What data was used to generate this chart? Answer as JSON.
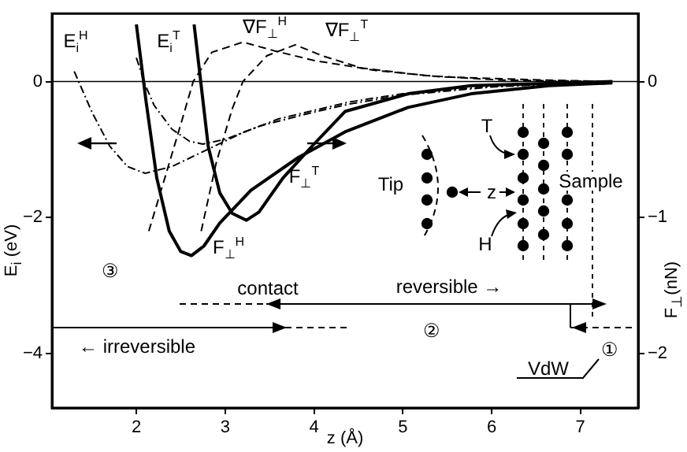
{
  "chart_data": {
    "type": "line",
    "xlabel": "z (Å)",
    "ylabel": "E$_{i}$ (eV)",
    "y2label": "F$_{⊥}$(nN)",
    "xlim": [
      1.05,
      7.65
    ],
    "xticks": [
      2,
      3,
      4,
      5,
      6,
      7
    ],
    "ylim": [
      -4.8,
      1.0
    ],
    "yticks": [
      0,
      -2,
      -4
    ],
    "y2lim": [
      -2.4,
      0.5
    ],
    "y2ticks": [
      0,
      -1,
      -2
    ],
    "grid": false,
    "legend": false,
    "marker": "none",
    "ref_lines": [
      {
        "axis": "y",
        "value": 0,
        "color": "#000000"
      }
    ],
    "series": [
      {
        "color": "#000000",
        "line_style": "dotted",
        "x": [
          1.3,
          1.5,
          1.7,
          1.9,
          2.1,
          2.4,
          2.8,
          3.2,
          3.6,
          4.4,
          5.0,
          6.0,
          7.0,
          7.3
        ],
        "values": [
          0.15,
          -0.45,
          -0.95,
          -1.25,
          -1.35,
          -1.25,
          -1.0,
          -0.75,
          -0.55,
          -0.3,
          -0.18,
          -0.07,
          -0.02,
          0
        ]
      },
      {
        "color": "#000000",
        "line_style": "dotted",
        "x": [
          2.0,
          2.1,
          2.2,
          2.4,
          2.6,
          2.75,
          3.0,
          3.4,
          4.0,
          4.4,
          5.0,
          6.0,
          7.0,
          7.3
        ],
        "values": [
          0.35,
          -0.05,
          -0.35,
          -0.7,
          -0.88,
          -0.92,
          -0.85,
          -0.65,
          -0.45,
          -0.33,
          -0.2,
          -0.08,
          -0.02,
          0
        ]
      },
      {
        "color": "#000000",
        "line_style": "dashed",
        "x": [
          2.14,
          2.32,
          2.5,
          2.64,
          2.85,
          3.2,
          3.56,
          4.0,
          4.71,
          5.42,
          6.65,
          7.36
        ],
        "values": [
          -2.2,
          -1.42,
          -0.63,
          0,
          0.43,
          0.58,
          0.45,
          0.31,
          0.16,
          0.07,
          0.02,
          0
        ]
      },
      {
        "color": "#000000",
        "line_style": "dashed",
        "x": [
          2.73,
          2.9,
          3.08,
          3.2,
          3.47,
          3.79,
          4.09,
          4.53,
          5.24,
          6.12,
          7.36
        ],
        "values": [
          -2.2,
          -1.19,
          -0.4,
          0,
          0.38,
          0.54,
          0.38,
          0.2,
          0.09,
          0.02,
          0
        ]
      },
      {
        "color": "#000000",
        "line_style": "solid",
        "axis": "y2",
        "x": [
          2.0,
          2.11,
          2.23,
          2.37,
          2.5,
          2.62,
          2.76,
          2.94,
          3.29,
          3.82,
          4.35,
          5.06,
          5.77,
          6.65,
          7.36
        ],
        "values": [
          0.42,
          -0.15,
          -0.71,
          -1.1,
          -1.25,
          -1.28,
          -1.21,
          -1.04,
          -0.8,
          -0.56,
          -0.37,
          -0.19,
          -0.09,
          -0.03,
          -0.01
        ]
      },
      {
        "color": "#000000",
        "line_style": "solid",
        "axis": "y2",
        "x": [
          2.65,
          2.73,
          2.81,
          2.94,
          3.08,
          3.24,
          3.38,
          3.65,
          4.0,
          4.35,
          5.06,
          5.77,
          7.36
        ],
        "values": [
          0.42,
          -0.03,
          -0.48,
          -0.82,
          -0.97,
          -1.02,
          -0.96,
          -0.71,
          -0.46,
          -0.22,
          -0.09,
          -0.03,
          0
        ]
      }
    ],
    "annotations": [
      "E$_{i}$$^{H}$",
      "E$_{i}$$^{T}$",
      "∇F$_{⊥}$$^{H}$",
      "∇F$_{⊥}$$^{T}$",
      "F$_{⊥}$$^{T}$",
      "F$_{⊥}$$^{H}$",
      "③",
      "contact",
      "← irreversible",
      "reversible →",
      "②",
      "①",
      "VdW",
      "Tip",
      "Sample",
      "T",
      "H",
      "z"
    ]
  }
}
